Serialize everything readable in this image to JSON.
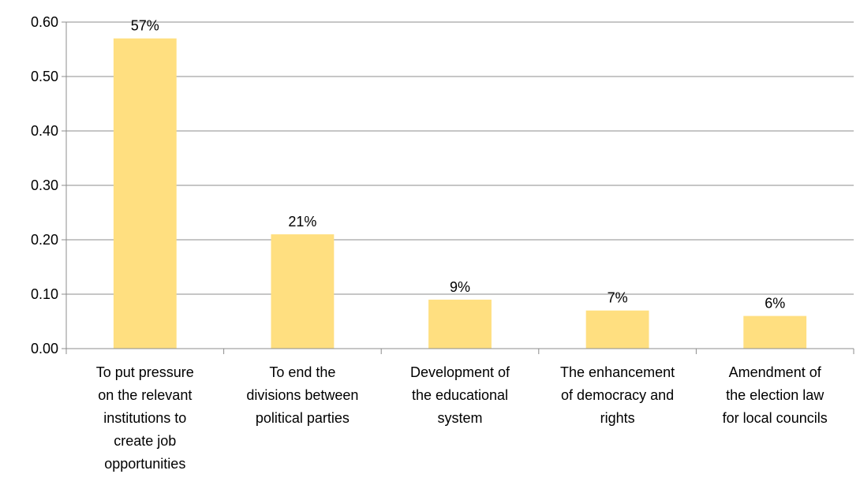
{
  "chart_data": {
    "type": "bar",
    "categories": [
      [
        "To put pressure",
        "on the relevant",
        "institutions to",
        "create job",
        "opportunities"
      ],
      [
        "To end the",
        "divisions between",
        "political parties"
      ],
      [
        "Development of",
        "the educational",
        "system"
      ],
      [
        "The enhancement",
        "of democracy and",
        "rights"
      ],
      [
        "Amendment of",
        "the election law",
        "for local councils"
      ]
    ],
    "values": [
      0.57,
      0.21,
      0.09,
      0.07,
      0.06
    ],
    "data_labels": [
      "57%",
      "21%",
      "9%",
      "7%",
      "6%"
    ],
    "ylim": [
      0,
      0.6
    ],
    "yticks": [
      "0.00",
      "0.10",
      "0.20",
      "0.30",
      "0.40",
      "0.50",
      "0.60"
    ],
    "title": "",
    "xlabel": "",
    "ylabel": "",
    "grid": true,
    "legend": "none",
    "bar_color": "#FFDF80",
    "grid_color": "#8C8C8C"
  }
}
